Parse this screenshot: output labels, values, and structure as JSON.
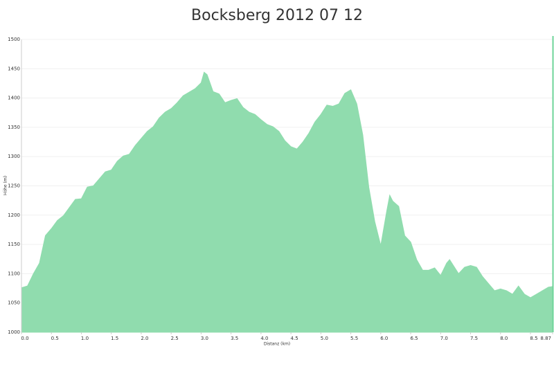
{
  "chart_data": {
    "type": "area",
    "title": "Bocksberg 2012 07 12",
    "x_label": "Distanz   (km)",
    "y_label": "Höhe (m)",
    "color": "#90dcae",
    "grid": true,
    "x": [
      0,
      0.1,
      0.2,
      0.3,
      0.4,
      0.5,
      0.6,
      0.7,
      0.8,
      0.9,
      1.0,
      1.1,
      1.2,
      1.3,
      1.4,
      1.5,
      1.6,
      1.7,
      1.8,
      1.9,
      2.0,
      2.1,
      2.2,
      2.3,
      2.4,
      2.5,
      2.6,
      2.7,
      2.8,
      2.9,
      3.0,
      3.05,
      3.1,
      3.2,
      3.3,
      3.4,
      3.5,
      3.6,
      3.7,
      3.8,
      3.9,
      4.0,
      4.1,
      4.2,
      4.3,
      4.4,
      4.5,
      4.6,
      4.7,
      4.8,
      4.9,
      5.0,
      5.1,
      5.2,
      5.3,
      5.4,
      5.5,
      5.6,
      5.7,
      5.8,
      5.9,
      6.0,
      6.1,
      6.15,
      6.2,
      6.3,
      6.4,
      6.5,
      6.6,
      6.7,
      6.8,
      6.9,
      7.0,
      7.1,
      7.15,
      7.3,
      7.4,
      7.5,
      7.6,
      7.7,
      7.8,
      7.9,
      8.0,
      8.1,
      8.2,
      8.3,
      8.4,
      8.5,
      8.6,
      8.7,
      8.8,
      8.87
    ],
    "values": [
      1076,
      1079,
      1100,
      1118,
      1165,
      1177,
      1191,
      1199,
      1213,
      1227,
      1228,
      1248,
      1250,
      1262,
      1274,
      1277,
      1292,
      1301,
      1304,
      1319,
      1331,
      1343,
      1351,
      1366,
      1376,
      1382,
      1392,
      1404,
      1410,
      1416,
      1426,
      1444,
      1440,
      1411,
      1407,
      1392,
      1396,
      1399,
      1384,
      1376,
      1372,
      1363,
      1355,
      1351,
      1343,
      1327,
      1317,
      1313,
      1325,
      1340,
      1359,
      1372,
      1388,
      1386,
      1390,
      1408,
      1414,
      1390,
      1337,
      1248,
      1189,
      1148,
      1207,
      1234,
      1224,
      1215,
      1165,
      1154,
      1124,
      1106,
      1106,
      1110,
      1097,
      1118,
      1124,
      1100,
      1111,
      1114,
      1111,
      1095,
      1083,
      1071,
      1074,
      1071,
      1065,
      1079,
      1065,
      1059,
      1065,
      1071,
      1077,
      1078
    ],
    "xlim": [
      0,
      8.87
    ],
    "ylim": [
      1000,
      1500
    ],
    "xticks": [
      {
        "value": 0,
        "label": "0.0"
      },
      0.5,
      {
        "value": 1,
        "label": "1.0"
      },
      1.5,
      {
        "value": 2,
        "label": "2.0"
      },
      2.5,
      {
        "value": 3,
        "label": "3.0"
      },
      3.5,
      {
        "value": 4,
        "label": "4.0"
      },
      4.5,
      {
        "value": 5,
        "label": "5.0"
      },
      5.5,
      {
        "value": 6,
        "label": "6.0"
      },
      6.5,
      {
        "value": 7,
        "label": "7.0"
      },
      7.5,
      {
        "value": 8,
        "label": "8.0"
      },
      8.5,
      8.87
    ],
    "yticks": [
      1000,
      1050,
      1100,
      1150,
      1200,
      1250,
      1300,
      1350,
      1400,
      1450,
      1500
    ]
  }
}
